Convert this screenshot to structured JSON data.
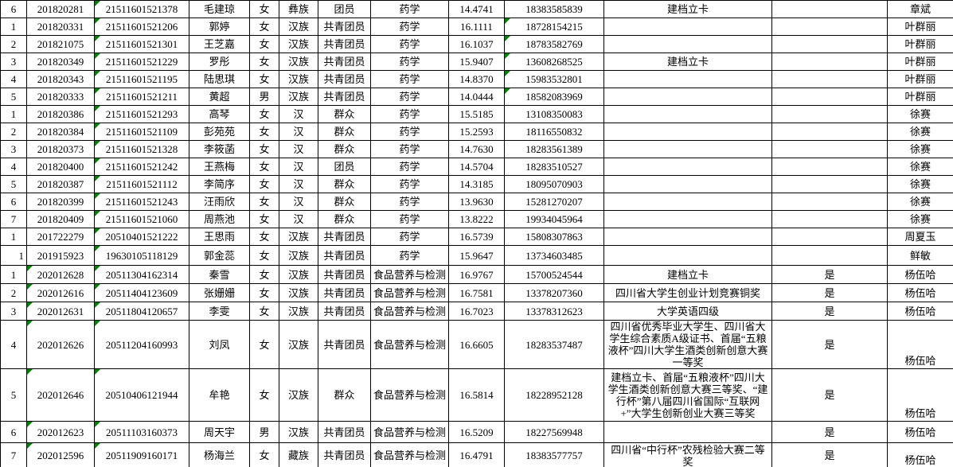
{
  "colors": {
    "background": "#ffffff",
    "grid_border": "#000000",
    "text": "#000000",
    "error_triangle_green": "#008000"
  },
  "columns": [
    {
      "key": "no",
      "name": "row-number"
    },
    {
      "key": "student_id",
      "name": "student-id"
    },
    {
      "key": "id_number",
      "name": "id-number"
    },
    {
      "key": "name",
      "name": "name"
    },
    {
      "key": "gender",
      "name": "gender"
    },
    {
      "key": "ethnicity",
      "name": "ethnicity"
    },
    {
      "key": "political_status",
      "name": "political-status"
    },
    {
      "key": "major",
      "name": "major"
    },
    {
      "key": "score",
      "name": "score"
    },
    {
      "key": "phone",
      "name": "phone"
    },
    {
      "key": "award",
      "name": "award"
    },
    {
      "key": "confirm",
      "name": "confirm"
    },
    {
      "key": "teacher",
      "name": "teacher"
    }
  ],
  "rows": [
    {
      "no": "6",
      "student_id": "201820281",
      "id_number": "21511601521378",
      "name": "毛建琼",
      "gender": "女",
      "ethnicity": "彝族",
      "political_status": "团员",
      "major": "药学",
      "score": "14.4741",
      "phone": "18383585839",
      "award": "建档立卡",
      "confirm": "",
      "teacher": "章斌",
      "triangles": [
        "id_number"
      ]
    },
    {
      "no": "1",
      "student_id": "201820331",
      "id_number": "21511601521206",
      "name": "郭婷",
      "gender": "女",
      "ethnicity": "汉族",
      "political_status": "共青团员",
      "major": "药学",
      "score": "16.1111",
      "phone": "18728154215",
      "award": "",
      "confirm": "",
      "teacher": "叶群丽",
      "triangles": [
        "id_number",
        "phone"
      ]
    },
    {
      "no": "2",
      "student_id": "201821075",
      "id_number": "21511601521301",
      "name": "王芝嘉",
      "gender": "女",
      "ethnicity": "汉族",
      "political_status": "共青团员",
      "major": "药学",
      "score": "16.1037",
      "phone": "18783582769",
      "award": "",
      "confirm": "",
      "teacher": "叶群丽",
      "triangles": [
        "id_number",
        "phone"
      ]
    },
    {
      "no": "3",
      "student_id": "201820349",
      "id_number": "21511601521229",
      "name": "罗彤",
      "gender": "女",
      "ethnicity": "汉族",
      "political_status": "共青团员",
      "major": "药学",
      "score": "15.9407",
      "phone": "13608268525",
      "award": "建档立卡",
      "confirm": "",
      "teacher": "叶群丽",
      "triangles": [
        "id_number",
        "phone"
      ]
    },
    {
      "no": "4",
      "student_id": "201820343",
      "id_number": "21511601521195",
      "name": "陆思琪",
      "gender": "女",
      "ethnicity": "汉族",
      "political_status": "共青团员",
      "major": "药学",
      "score": "14.8370",
      "phone": "15983532801",
      "award": "",
      "confirm": "",
      "teacher": "叶群丽",
      "triangles": [
        "id_number",
        "phone"
      ]
    },
    {
      "no": "5",
      "student_id": "201820333",
      "id_number": "21511601521211",
      "name": "黄超",
      "gender": "男",
      "ethnicity": "汉族",
      "political_status": "共青团员",
      "major": "药学",
      "score": "14.0444",
      "phone": "18582083969",
      "award": "",
      "confirm": "",
      "teacher": "叶群丽",
      "triangles": [
        "id_number",
        "phone"
      ]
    },
    {
      "no": "1",
      "student_id": "201820386",
      "id_number": "21511601521293",
      "name": "高琴",
      "gender": "女",
      "ethnicity": "汉",
      "political_status": "群众",
      "major": "药学",
      "score": "15.5185",
      "phone": "13108350083",
      "award": "",
      "confirm": "",
      "teacher": "徐赛",
      "triangles": [
        "id_number"
      ]
    },
    {
      "no": "2",
      "student_id": "201820384",
      "id_number": "21511601521109",
      "name": "彭苑苑",
      "gender": "女",
      "ethnicity": "汉",
      "political_status": "群众",
      "major": "药学",
      "score": "15.2593",
      "phone": "18116550832",
      "award": "",
      "confirm": "",
      "teacher": "徐赛",
      "triangles": [
        "id_number"
      ]
    },
    {
      "no": "3",
      "student_id": "201820373",
      "id_number": "21511601521328",
      "name": "李筱菡",
      "gender": "女",
      "ethnicity": "汉",
      "political_status": "群众",
      "major": "药学",
      "score": "14.7630",
      "phone": "18283561389",
      "award": "",
      "confirm": "",
      "teacher": "徐赛",
      "triangles": [
        "id_number"
      ]
    },
    {
      "no": "4",
      "student_id": "201820400",
      "id_number": "21511601521242",
      "name": "王燕梅",
      "gender": "女",
      "ethnicity": "汉",
      "political_status": "团员",
      "major": "药学",
      "score": "14.5704",
      "phone": "18283510527",
      "award": "",
      "confirm": "",
      "teacher": "徐赛",
      "triangles": [
        "id_number"
      ]
    },
    {
      "no": "5",
      "student_id": "201820387",
      "id_number": "21511601521112",
      "name": "李简序",
      "gender": "女",
      "ethnicity": "汉",
      "political_status": "群众",
      "major": "药学",
      "score": "14.3185",
      "phone": "18095070903",
      "award": "",
      "confirm": "",
      "teacher": "徐赛",
      "triangles": [
        "id_number"
      ]
    },
    {
      "no": "6",
      "student_id": "201820399",
      "id_number": "21511601521243",
      "name": "汪雨欣",
      "gender": "女",
      "ethnicity": "汉",
      "political_status": "群众",
      "major": "药学",
      "score": "13.9630",
      "phone": "15281270207",
      "award": "",
      "confirm": "",
      "teacher": "徐赛",
      "triangles": [
        "id_number"
      ]
    },
    {
      "no": "7",
      "student_id": "201820409",
      "id_number": "21511601521060",
      "name": "周燕池",
      "gender": "女",
      "ethnicity": "汉",
      "political_status": "群众",
      "major": "药学",
      "score": "13.8222",
      "phone": "19934045964",
      "award": "",
      "confirm": "",
      "teacher": "徐赛",
      "triangles": [
        "id_number"
      ]
    },
    {
      "no": "1",
      "student_id": "201722279",
      "id_number": "20510401521222",
      "name": "王思雨",
      "gender": "女",
      "ethnicity": "汉族",
      "political_status": "共青团员",
      "major": "药学",
      "score": "16.5739",
      "phone": "15808307863",
      "award": "",
      "confirm": "",
      "teacher": "周夏玉",
      "triangles": [
        "id_number"
      ]
    },
    {
      "no": "1",
      "student_id": "201915923",
      "id_number": "19630105118129",
      "name": "郭金蕊",
      "gender": "女",
      "ethnicity": "汉族",
      "political_status": "共青团员",
      "major": "药学",
      "score": "15.9647",
      "phone": "13734603485",
      "award": "",
      "confirm": "",
      "teacher": "鲜敏",
      "triangles": [
        "id_number"
      ]
    },
    {
      "no": "1",
      "student_id": "202012628",
      "id_number": "20511304162314",
      "name": "秦雪",
      "gender": "女",
      "ethnicity": "汉族",
      "political_status": "共青团员",
      "major": "食品营养与检测",
      "score": "16.9767",
      "phone": "15700524544",
      "award": "建档立卡",
      "confirm": "是",
      "teacher": "杨伍哈",
      "triangles": [
        "student_id",
        "id_number"
      ]
    },
    {
      "no": "2",
      "student_id": "202012616",
      "id_number": "20511404123609",
      "name": "张姗姗",
      "gender": "女",
      "ethnicity": "汉族",
      "political_status": "共青团员",
      "major": "食品营养与检测",
      "score": "16.7581",
      "phone": "13378207360",
      "award": "四川省大学生创业计划竞赛铜奖",
      "confirm": "是",
      "teacher": "杨伍哈",
      "triangles": [
        "student_id",
        "id_number"
      ]
    },
    {
      "no": "3",
      "student_id": "202012631",
      "id_number": "20511804120657",
      "name": "李雯",
      "gender": "女",
      "ethnicity": "汉族",
      "political_status": "共青团员",
      "major": "食品营养与检测",
      "score": "16.7023",
      "phone": "13378312623",
      "award": "大学英语四级",
      "confirm": "是",
      "teacher": "杨伍哈",
      "triangles": [
        "student_id",
        "id_number"
      ]
    },
    {
      "no": "4",
      "student_id": "202012626",
      "id_number": "20511204160993",
      "name": "刘凤",
      "gender": "女",
      "ethnicity": "汉族",
      "political_status": "共青团员",
      "major": "食品营养与检测",
      "score": "16.6605",
      "phone": "18283537487",
      "award": "四川省优秀毕业大学生、四川省大学生综合素质A级证书、首届“五粮液杯”四川大学生酒类创新创意大赛一等奖",
      "confirm": "是",
      "teacher": "杨伍哈",
      "triangles": [
        "student_id",
        "id_number"
      ]
    },
    {
      "no": "5",
      "student_id": "202012646",
      "id_number": "20510406121944",
      "name": "牟艳",
      "gender": "女",
      "ethnicity": "汉族",
      "political_status": "群众",
      "major": "食品营养与检测",
      "score": "16.5814",
      "phone": "18228952128",
      "award": "建档立卡、首届“五粮液杯”四川大学生酒类创新创意大赛三等奖、“建行杯”第八届四川省国际“互联网+”大学生创新创业大赛三等奖",
      "confirm": "是",
      "teacher": "杨伍哈",
      "triangles": [
        "student_id",
        "id_number"
      ]
    },
    {
      "no": "6",
      "student_id": "202012623",
      "id_number": "20511103160373",
      "name": "周天宇",
      "gender": "男",
      "ethnicity": "汉族",
      "political_status": "共青团员",
      "major": "食品营养与检测",
      "score": "16.5209",
      "phone": "18227569948",
      "award": "",
      "confirm": "是",
      "teacher": "杨伍哈",
      "triangles": [
        "student_id",
        "id_number"
      ]
    },
    {
      "no": "7",
      "student_id": "202012596",
      "id_number": "20511909160171",
      "name": "杨海兰",
      "gender": "女",
      "ethnicity": "藏族",
      "political_status": "共青团员",
      "major": "食品营养与检测",
      "score": "16.4791",
      "phone": "18383577757",
      "award": "四川省“中行杯”农残检验大赛二等奖",
      "confirm": "是",
      "teacher": "杨伍哈",
      "triangles": [
        "student_id",
        "id_number"
      ]
    }
  ]
}
